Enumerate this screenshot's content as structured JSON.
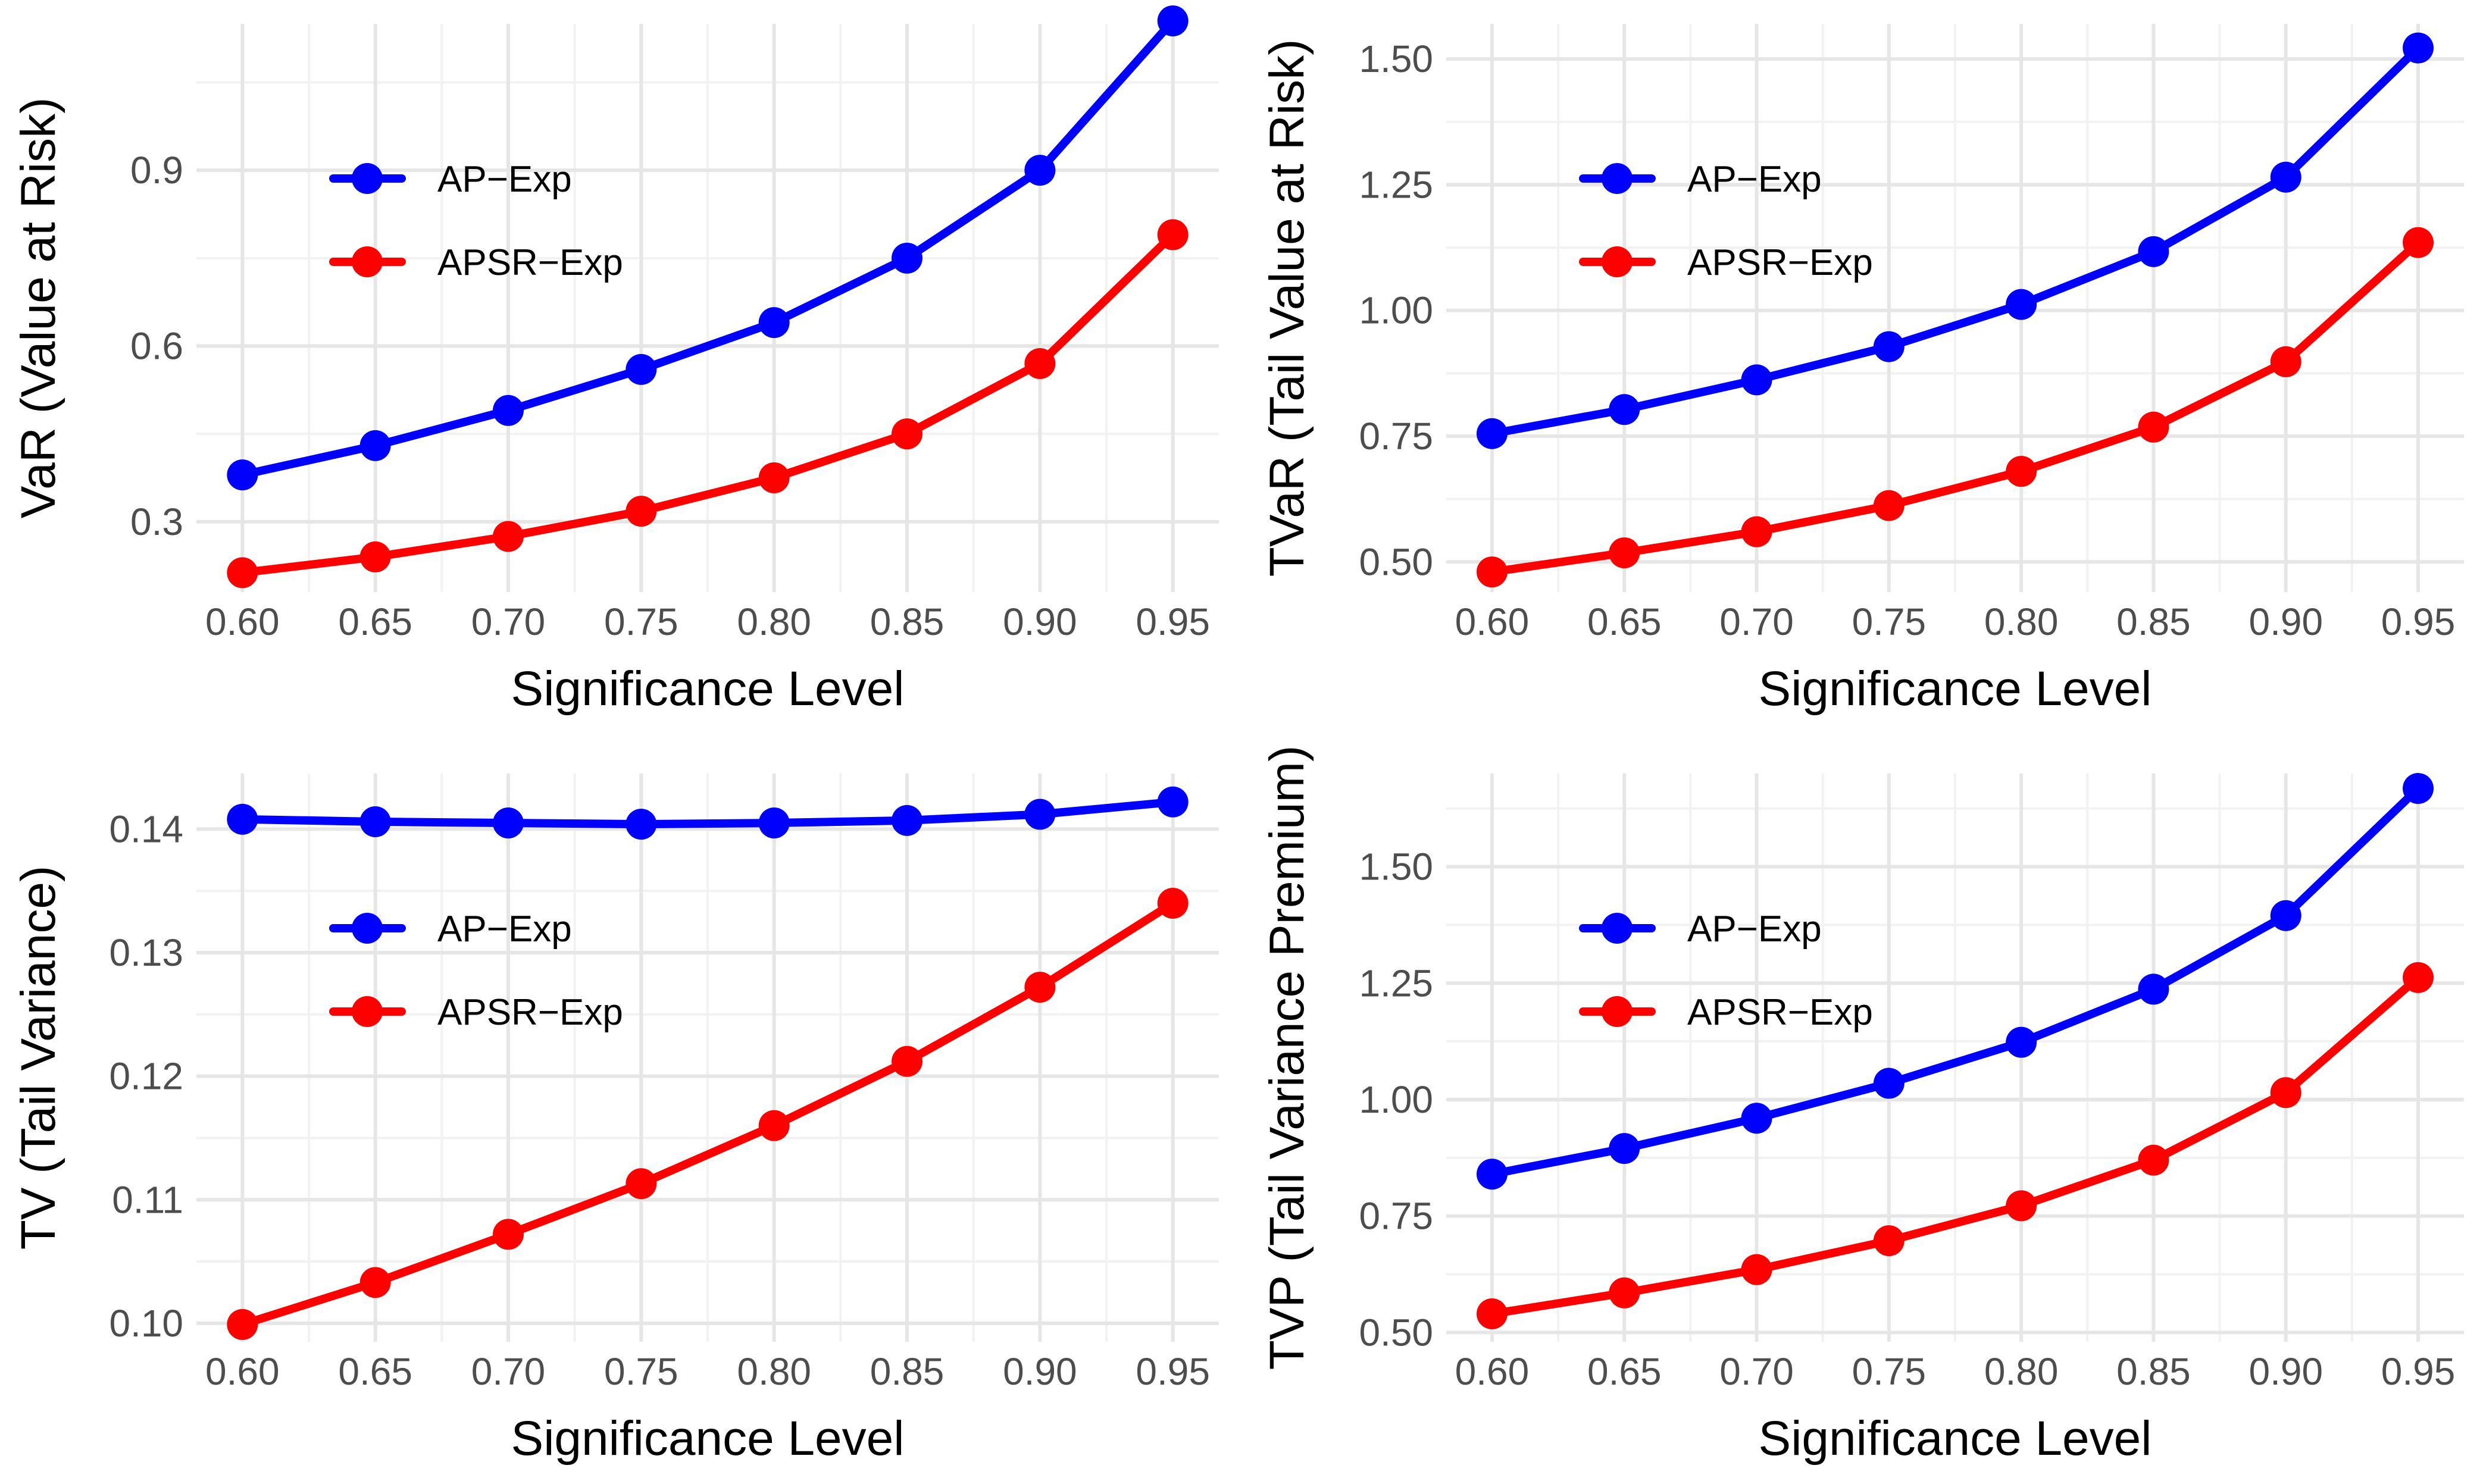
{
  "colors": {
    "ap": "#0000ff",
    "apsr": "#ff0000",
    "grid_major": "#e6e6e6",
    "grid_minor": "#f2f2f2"
  },
  "legend": [
    "AP−Exp",
    "APSR−Exp"
  ],
  "chart_data": [
    {
      "type": "line",
      "title": "",
      "xlabel": "Significance Level",
      "ylabel": "VaR (Value at Risk)",
      "x": [
        0.6,
        0.65,
        0.7,
        0.75,
        0.8,
        0.85,
        0.9,
        0.95
      ],
      "xticks": [
        "0.60",
        "0.65",
        "0.70",
        "0.75",
        "0.80",
        "0.85",
        "0.90",
        "0.95"
      ],
      "yticks": [
        {
          "v": 0.3,
          "t": "0.3"
        },
        {
          "v": 0.6,
          "t": "0.6"
        },
        {
          "v": 0.9,
          "t": "0.9"
        }
      ],
      "ylim": [
        0.18,
        1.15
      ],
      "series": [
        {
          "name": "AP−Exp",
          "values": [
            0.38,
            0.43,
            0.49,
            0.56,
            0.64,
            0.75,
            0.9,
            1.155
          ]
        },
        {
          "name": "APSR−Exp",
          "values": [
            0.213,
            0.24,
            0.275,
            0.318,
            0.375,
            0.45,
            0.57,
            0.79
          ]
        }
      ]
    },
    {
      "type": "line",
      "title": "",
      "xlabel": "Significance Level",
      "ylabel": "TVaR (Tail Value at Risk)",
      "x": [
        0.6,
        0.65,
        0.7,
        0.75,
        0.8,
        0.85,
        0.9,
        0.95
      ],
      "xticks": [
        "0.60",
        "0.65",
        "0.70",
        "0.75",
        "0.80",
        "0.85",
        "0.90",
        "0.95"
      ],
      "yticks": [
        {
          "v": 0.5,
          "t": "0.50"
        },
        {
          "v": 0.75,
          "t": "0.75"
        },
        {
          "v": 1.0,
          "t": "1.00"
        },
        {
          "v": 1.25,
          "t": "1.25"
        },
        {
          "v": 1.5,
          "t": "1.50"
        }
      ],
      "ylim": [
        0.44,
        1.57
      ],
      "series": [
        {
          "name": "AP−Exp",
          "values": [
            0.755,
            0.803,
            0.862,
            0.928,
            1.012,
            1.117,
            1.265,
            1.522
          ]
        },
        {
          "name": "APSR−Exp",
          "values": [
            0.48,
            0.518,
            0.56,
            0.612,
            0.68,
            0.768,
            0.898,
            1.135
          ]
        }
      ]
    },
    {
      "type": "line",
      "title": "",
      "xlabel": "Significance Level",
      "ylabel": "TV (Tail Variance)",
      "x": [
        0.6,
        0.65,
        0.7,
        0.75,
        0.8,
        0.85,
        0.9,
        0.95
      ],
      "xticks": [
        "0.60",
        "0.65",
        "0.70",
        "0.75",
        "0.80",
        "0.85",
        "0.90",
        "0.95"
      ],
      "yticks": [
        {
          "v": 0.1,
          "t": "0.10"
        },
        {
          "v": 0.11,
          "t": "0.11"
        },
        {
          "v": 0.12,
          "t": "0.12"
        },
        {
          "v": 0.13,
          "t": "0.13"
        },
        {
          "v": 0.14,
          "t": "0.14"
        }
      ],
      "ylim": [
        0.0985,
        0.1445
      ],
      "series": [
        {
          "name": "AP−Exp",
          "values": [
            0.1408,
            0.1406,
            0.1405,
            0.1404,
            0.1405,
            0.1407,
            0.1412,
            0.1422
          ]
        },
        {
          "name": "APSR−Exp",
          "values": [
            0.0999,
            0.1033,
            0.1072,
            0.1113,
            0.116,
            0.1212,
            0.1272,
            0.134
          ]
        }
      ]
    },
    {
      "type": "line",
      "title": "",
      "xlabel": "Significance Level",
      "ylabel": "TVP (Tail Variance Premium)",
      "x": [
        0.6,
        0.65,
        0.7,
        0.75,
        0.8,
        0.85,
        0.9,
        0.95
      ],
      "xticks": [
        "0.60",
        "0.65",
        "0.70",
        "0.75",
        "0.80",
        "0.85",
        "0.90",
        "0.95"
      ],
      "yticks": [
        {
          "v": 0.5,
          "t": "0.50"
        },
        {
          "v": 0.75,
          "t": "0.75"
        },
        {
          "v": 1.0,
          "t": "1.00"
        },
        {
          "v": 1.25,
          "t": "1.25"
        },
        {
          "v": 1.5,
          "t": "1.50"
        }
      ],
      "ylim": [
        0.48,
        1.7
      ],
      "series": [
        {
          "name": "AP−Exp",
          "values": [
            0.84,
            0.895,
            0.96,
            1.035,
            1.123,
            1.237,
            1.395,
            1.668
          ]
        },
        {
          "name": "APSR−Exp",
          "values": [
            0.54,
            0.585,
            0.635,
            0.697,
            0.772,
            0.87,
            1.015,
            1.262
          ]
        }
      ]
    }
  ]
}
